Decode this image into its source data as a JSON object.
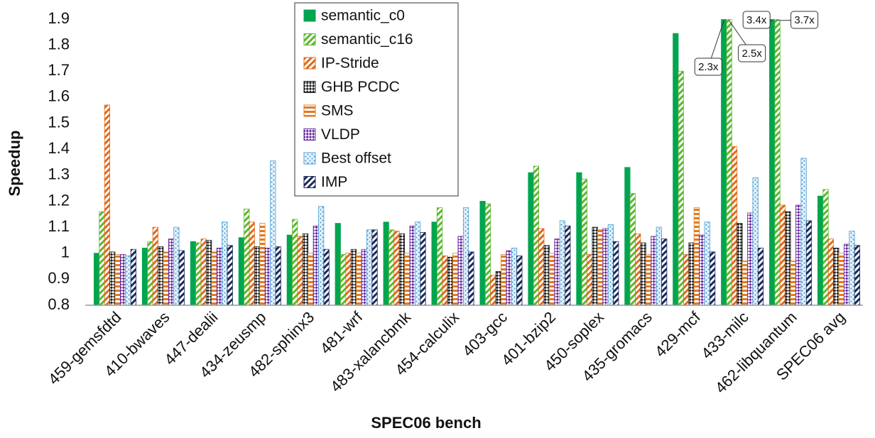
{
  "chart_data": {
    "type": "bar",
    "x_label": "SPEC06 bench",
    "y_label": "Speedup",
    "categories": [
      "459-gemsfdtd",
      "410-bwaves",
      "447-dealii",
      "434-zeusmp",
      "482-sphinx3",
      "481-wrf",
      "483-xalancbmk",
      "454-calculix",
      "403-gcc",
      "401-bzip2",
      "450-soplex",
      "435-gromacs",
      "429-mcf",
      "433-milc",
      "462-libquantum",
      "SPEC06 avg"
    ],
    "series": [
      {
        "name": "semantic_c0",
        "color": "#00a550",
        "pattern": "solid",
        "values": [
          1.0,
          1.02,
          1.045,
          1.06,
          1.07,
          1.115,
          1.12,
          1.12,
          1.2,
          1.31,
          1.31,
          1.33,
          1.845,
          2.3,
          3.4,
          1.22
        ],
        "value_labels": [
          null,
          null,
          null,
          null,
          null,
          null,
          null,
          null,
          null,
          null,
          null,
          null,
          null,
          "2.3x",
          "3.4x",
          null
        ]
      },
      {
        "name": "semantic_c16",
        "color": "#5cb82e",
        "pattern": "diagonal",
        "values": [
          1.16,
          1.045,
          1.04,
          1.17,
          1.13,
          0.995,
          1.09,
          1.175,
          1.19,
          1.335,
          1.285,
          1.23,
          1.7,
          2.5,
          3.7,
          1.245
        ],
        "value_labels": [
          null,
          null,
          null,
          null,
          null,
          null,
          null,
          null,
          null,
          null,
          null,
          null,
          null,
          "2.5x",
          "3.7x",
          null
        ]
      },
      {
        "name": "IP-Stride",
        "color": "#e06a1a",
        "pattern": "diagonal",
        "values": [
          1.57,
          1.1,
          1.055,
          1.12,
          1.065,
          1.0,
          1.085,
          0.99,
          0.915,
          1.095,
          0.995,
          1.075,
          0.995,
          1.41,
          1.185,
          1.055
        ]
      },
      {
        "name": "GHB PCDC",
        "color": "#222222",
        "pattern": "checker",
        "values": [
          1.005,
          1.025,
          1.05,
          1.025,
          1.075,
          1.015,
          1.075,
          0.985,
          0.93,
          1.03,
          1.1,
          1.04,
          1.04,
          1.115,
          1.16,
          1.02
        ]
      },
      {
        "name": "SMS",
        "color": "#e07b20",
        "pattern": "horizontal",
        "values": [
          0.995,
          1.005,
          1.005,
          1.115,
          1.0,
          1.0,
          1.0,
          1.0,
          0.995,
          1.0,
          1.09,
          0.995,
          1.175,
          0.97,
          0.97,
          1.0
        ]
      },
      {
        "name": "VLDP",
        "color": "#6a2ca0",
        "pattern": "checker",
        "values": [
          0.995,
          1.055,
          1.02,
          1.02,
          1.105,
          1.015,
          1.105,
          1.065,
          1.01,
          1.055,
          1.095,
          1.065,
          1.07,
          1.155,
          1.185,
          1.035
        ]
      },
      {
        "name": "Best offset",
        "color": "#4a9fd8",
        "pattern": "dots",
        "values": [
          0.99,
          1.1,
          1.12,
          1.355,
          1.18,
          1.09,
          1.12,
          1.175,
          1.02,
          1.125,
          1.11,
          1.1,
          1.12,
          1.29,
          1.365,
          1.085
        ]
      },
      {
        "name": "IMP",
        "color": "#1a2a5a",
        "pattern": "diagonal",
        "values": [
          1.015,
          1.01,
          1.03,
          1.025,
          1.015,
          1.09,
          1.08,
          1.005,
          0.99,
          1.105,
          1.045,
          1.055,
          1.005,
          1.02,
          1.125,
          1.03
        ]
      }
    ],
    "ylim": [
      0.8,
      1.9
    ],
    "yticks": [
      0.8,
      0.9,
      1,
      1.1,
      1.2,
      1.3,
      1.4,
      1.5,
      1.6,
      1.7,
      1.8,
      1.9
    ],
    "grid": false
  }
}
